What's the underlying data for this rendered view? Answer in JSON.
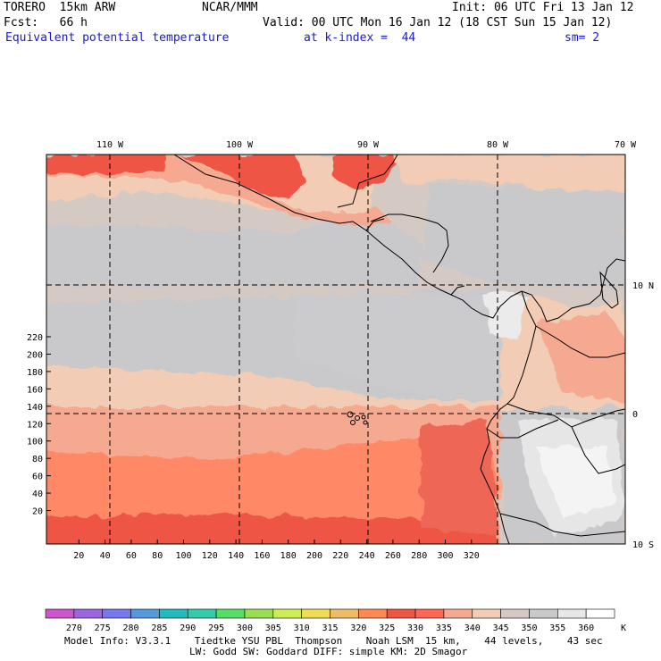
{
  "header": {
    "model": "TORERO  15km ARW",
    "center": "NCAR/MMM",
    "init": "Init: 06 UTC Fri 13 Jan 12",
    "fcst": "Fcst:   66 h",
    "valid": "Valid: 00 UTC Mon 16 Jan 12 (18 CST Sun 15 Jan 12)",
    "field": "Equivalent potential temperature",
    "kindex": "at k-index =  44",
    "smooth": "sm= 2"
  },
  "map": {
    "lon_labels": [
      "110 W",
      "100 W",
      "90 W",
      "80 W",
      "70 W"
    ],
    "lat_labels": [
      "10 N",
      "0",
      "10 S"
    ],
    "x_ticks": [
      "20",
      "40",
      "60",
      "80",
      "100",
      "120",
      "140",
      "160",
      "180",
      "200",
      "220",
      "240",
      "260",
      "280",
      "300",
      "320"
    ],
    "y_ticks": [
      "20",
      "40",
      "60",
      "80",
      "100",
      "120",
      "140",
      "160",
      "180",
      "200",
      "220"
    ]
  },
  "colorbar": {
    "levels": [
      "270",
      "275",
      "280",
      "285",
      "290",
      "295",
      "300",
      "305",
      "310",
      "315",
      "320",
      "325",
      "330",
      "335",
      "340",
      "345",
      "350",
      "355",
      "360"
    ],
    "unit": "K",
    "colors": [
      "#cc55cc",
      "#9966dd",
      "#7777ee",
      "#5599dd",
      "#22bbbb",
      "#33ccaa",
      "#55dd66",
      "#99dd55",
      "#ccee55",
      "#eedd55",
      "#eebb66",
      "#ff8855",
      "#ee5544",
      "#ff6655",
      "#f5a990",
      "#f2ccb5",
      "#d5c9c4",
      "#c9c9cb",
      "#e8e8e8",
      "#ffffff"
    ]
  },
  "footer": {
    "line1": "Model Info: V3.3.1    Tiedtke YSU PBL  Thompson    Noah LSM  15 km,    44 levels,    43 sec",
    "line2": "LW: Godd SW: Goddard DIFF: simple KM: 2D Smagor"
  }
}
